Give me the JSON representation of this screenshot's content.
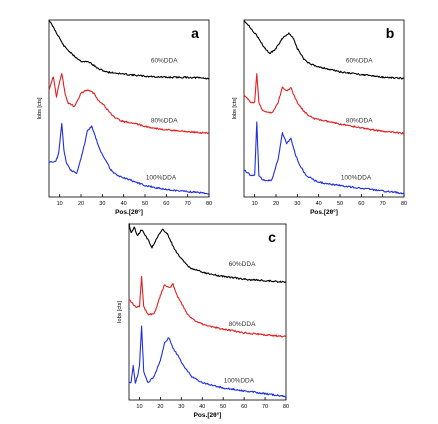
{
  "chart_data": [
    {
      "type": "line",
      "panel_label": "a",
      "xlabel": "Pos.[2θ°]",
      "ylabel": "Iobs [cts]",
      "xlim": [
        5,
        80
      ],
      "xticks": [
        10,
        20,
        30,
        40,
        50,
        60,
        70,
        80
      ],
      "series": [
        {
          "name": "60%DDA",
          "color": "#000000",
          "x": [
            5,
            8,
            12,
            16,
            20,
            24,
            28,
            32,
            36,
            40,
            50,
            60,
            70,
            80
          ],
          "y": [
            92,
            82,
            68,
            60,
            54,
            53,
            47,
            44,
            43,
            42,
            40,
            39,
            39,
            38
          ]
        },
        {
          "name": "80%DDA",
          "color": "#e32020",
          "x": [
            5,
            7,
            8.5,
            10,
            11,
            12.5,
            14,
            17,
            20,
            23,
            26,
            28,
            30,
            33,
            36,
            40,
            45,
            50,
            60,
            70,
            80
          ],
          "y": [
            40,
            48,
            36,
            45,
            50,
            38,
            32,
            30,
            38,
            40,
            38,
            34,
            32,
            27,
            23,
            21,
            20,
            18,
            16,
            15,
            14
          ]
        },
        {
          "name": "100%DDA",
          "color": "#1f2fe0",
          "x": [
            5,
            8,
            9.5,
            11,
            12,
            13,
            15,
            18,
            21,
            23,
            25,
            27,
            29,
            31,
            34,
            37,
            40,
            45,
            50,
            55,
            60,
            70,
            80
          ],
          "y": [
            22,
            22,
            26,
            42,
            28,
            22,
            18,
            16,
            28,
            38,
            40,
            34,
            28,
            24,
            18,
            15,
            14,
            12,
            10,
            9,
            8,
            7,
            6
          ]
        }
      ]
    },
    {
      "type": "line",
      "panel_label": "b",
      "xlabel": "Pos.[2θ°]",
      "ylabel": "Iobs [cts]",
      "xlim": [
        5,
        80
      ],
      "xticks": [
        10,
        20,
        30,
        40,
        50,
        60,
        70,
        80
      ],
      "series": [
        {
          "name": "60%DDA",
          "color": "#000000",
          "x": [
            5,
            8,
            11,
            14,
            17,
            20,
            23,
            26,
            28,
            30,
            33,
            36,
            40,
            50,
            60,
            70,
            80
          ],
          "y": [
            92,
            86,
            80,
            72,
            66,
            70,
            78,
            82,
            78,
            70,
            62,
            58,
            56,
            52,
            50,
            48,
            47
          ]
        },
        {
          "name": "80%DDA",
          "color": "#e32020",
          "x": [
            5,
            8,
            10,
            11,
            12,
            14,
            18,
            21,
            23,
            25,
            27,
            29,
            31,
            34,
            38,
            42,
            50,
            60,
            70,
            80
          ],
          "y": [
            36,
            32,
            32,
            48,
            32,
            27,
            26,
            32,
            40,
            38,
            40,
            34,
            30,
            26,
            23,
            22,
            20,
            18,
            16,
            15
          ]
        },
        {
          "name": "100%DDA",
          "color": "#1f2fe0",
          "x": [
            5,
            8,
            10,
            11,
            12,
            14,
            18,
            21,
            23,
            25,
            27,
            29,
            31,
            34,
            38,
            42,
            50,
            60,
            70,
            80
          ],
          "y": [
            14,
            12,
            12,
            32,
            12,
            10,
            10,
            18,
            28,
            24,
            26,
            20,
            16,
            12,
            10,
            9,
            8,
            7,
            6,
            5
          ]
        }
      ]
    },
    {
      "type": "line",
      "panel_label": "c",
      "xlabel": "Pos.[2θ°]",
      "ylabel": "Iobs [cts]",
      "xlim": [
        5,
        80
      ],
      "xticks": [
        10,
        20,
        30,
        40,
        50,
        60,
        70,
        80
      ],
      "series": [
        {
          "name": "60%DDA",
          "color": "#000000",
          "x": [
            5,
            6,
            7.5,
            9,
            11,
            13,
            16,
            19,
            21,
            23,
            25,
            27,
            30,
            34,
            38,
            42,
            50,
            60,
            70,
            80
          ],
          "y": [
            88,
            82,
            86,
            80,
            84,
            80,
            72,
            80,
            84,
            82,
            76,
            70,
            64,
            58,
            56,
            54,
            52,
            50,
            49,
            48
          ]
        },
        {
          "name": "80%DDA",
          "color": "#e32020",
          "x": [
            5,
            8,
            10,
            11,
            12,
            14,
            17,
            20,
            22,
            24,
            26,
            28,
            30,
            33,
            37,
            42,
            50,
            60,
            70,
            80
          ],
          "y": [
            38,
            34,
            34,
            50,
            34,
            30,
            30,
            40,
            46,
            44,
            46,
            40,
            36,
            30,
            26,
            24,
            22,
            20,
            19,
            18
          ]
        },
        {
          "name": "100%DDA",
          "color": "#1f2fe0",
          "x": [
            5,
            6,
            7,
            8,
            9,
            10,
            11,
            12,
            14,
            17,
            20,
            22,
            24,
            26,
            28,
            31,
            35,
            40,
            50,
            60,
            70,
            80
          ],
          "y": [
            12,
            12,
            18,
            12,
            14,
            18,
            32,
            16,
            12,
            14,
            20,
            26,
            28,
            24,
            22,
            18,
            14,
            12,
            10,
            9,
            8,
            7
          ]
        }
      ]
    }
  ]
}
